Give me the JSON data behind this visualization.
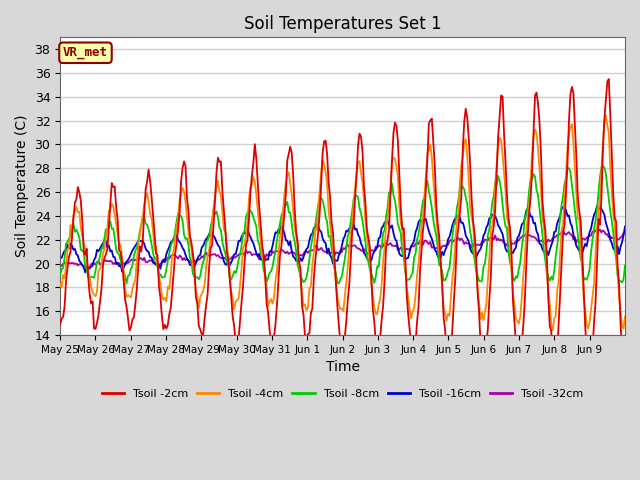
{
  "title": "Soil Temperatures Set 1",
  "xlabel": "Time",
  "ylabel": "Soil Temperature (C)",
  "ylim": [
    14,
    39
  ],
  "yticks": [
    14,
    16,
    18,
    20,
    22,
    24,
    26,
    28,
    30,
    32,
    34,
    36,
    38
  ],
  "background_color": "#d8d8d8",
  "plot_bg_color": "#ffffff",
  "grid_color": "#d0d0d0",
  "annotation_text": "VR_met",
  "annotation_bg": "#ffffaa",
  "annotation_border": "#8b0000",
  "n_days": 16,
  "xtick_labels": [
    "May 25",
    "May 26",
    "May 27",
    "May 28",
    "May 29",
    "May 30",
    "May 31",
    "Jun 1",
    "Jun 2",
    "Jun 3",
    "Jun 4",
    "Jun 5",
    "Jun 6",
    "Jun 7",
    "Jun 8",
    "Jun 9"
  ],
  "legend_entries": [
    "Tsoil -2cm",
    "Tsoil -4cm",
    "Tsoil -8cm",
    "Tsoil -16cm",
    "Tsoil -32cm"
  ],
  "legend_colors": [
    "#dd0000",
    "#ff8800",
    "#00cc00",
    "#0000cc",
    "#aa00aa"
  ]
}
